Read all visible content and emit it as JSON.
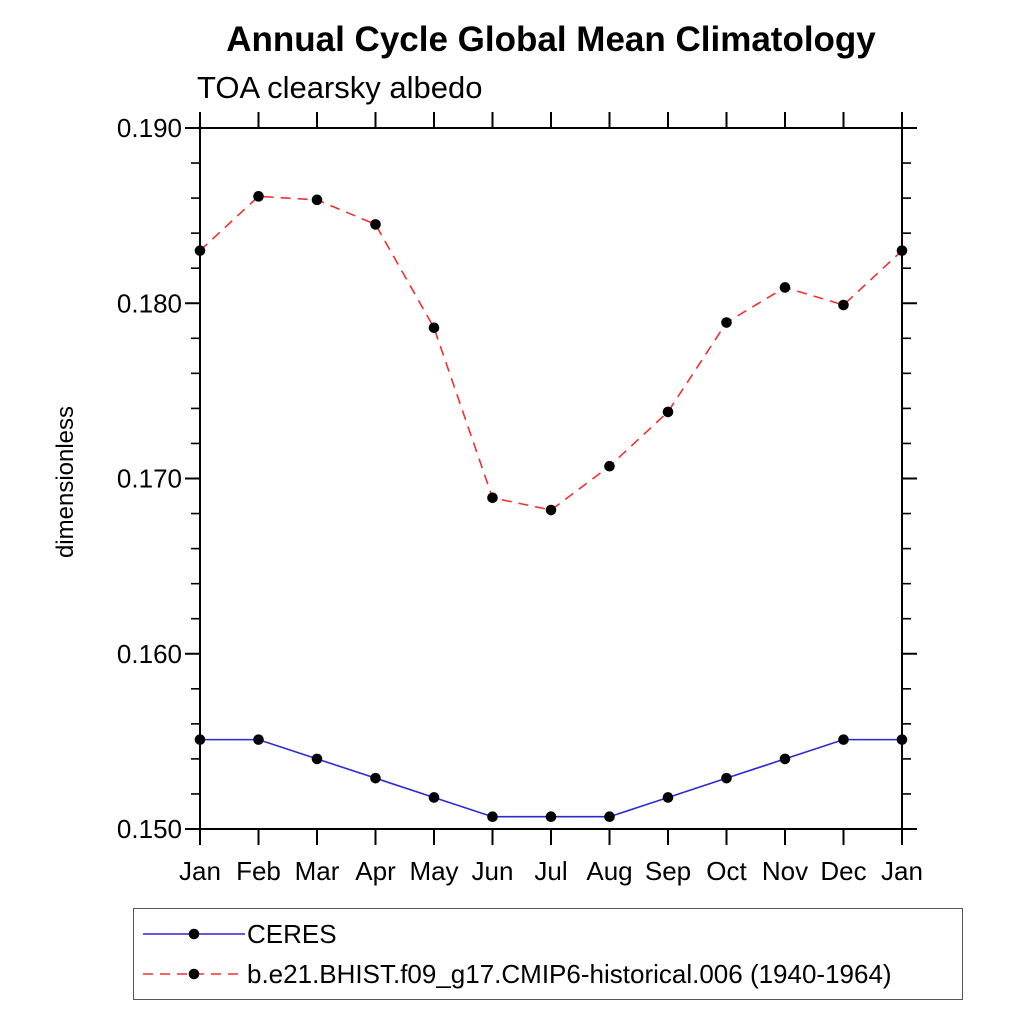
{
  "header": {
    "title": "Annual Cycle Global Mean Climatology",
    "subtitle": "TOA clearsky albedo"
  },
  "chart_data": {
    "type": "line",
    "title": "Annual Cycle Global Mean Climatology",
    "subtitle": "TOA clearsky albedo",
    "xlabel": "",
    "ylabel": "dimensionless",
    "categories": [
      "Jan",
      "Feb",
      "Mar",
      "Apr",
      "May",
      "Jun",
      "Jul",
      "Aug",
      "Sep",
      "Oct",
      "Nov",
      "Dec",
      "Jan"
    ],
    "ylim": [
      0.15,
      0.19
    ],
    "y_major_ticks": [
      0.15,
      0.16,
      0.17,
      0.18,
      0.19
    ],
    "y_tick_labels": [
      "0.150",
      "0.160",
      "0.170",
      "0.180",
      "0.190"
    ],
    "y_minor_step": 0.002,
    "grid": false,
    "legend_position": "bottom-left",
    "marker": {
      "shape": "filled-circle",
      "color": "#000000",
      "radius_px": 5.3
    },
    "series": [
      {
        "name": "CERES",
        "line_style": "solid",
        "color": "#2a2ad2",
        "values": [
          0.1551,
          0.1551,
          0.154,
          0.1529,
          0.1518,
          0.1507,
          0.1507,
          0.1507,
          0.1518,
          0.1529,
          0.154,
          0.1551,
          0.1551
        ]
      },
      {
        "name": "b.e21.BHIST.f09_g17.CMIP6-historical.006 (1940-1964)",
        "line_style": "dashed",
        "color": "#f03030",
        "values": [
          0.183,
          0.1861,
          0.1859,
          0.1845,
          0.1786,
          0.1689,
          0.1682,
          0.1707,
          0.1738,
          0.1789,
          0.1809,
          0.1799,
          0.183
        ]
      }
    ]
  }
}
